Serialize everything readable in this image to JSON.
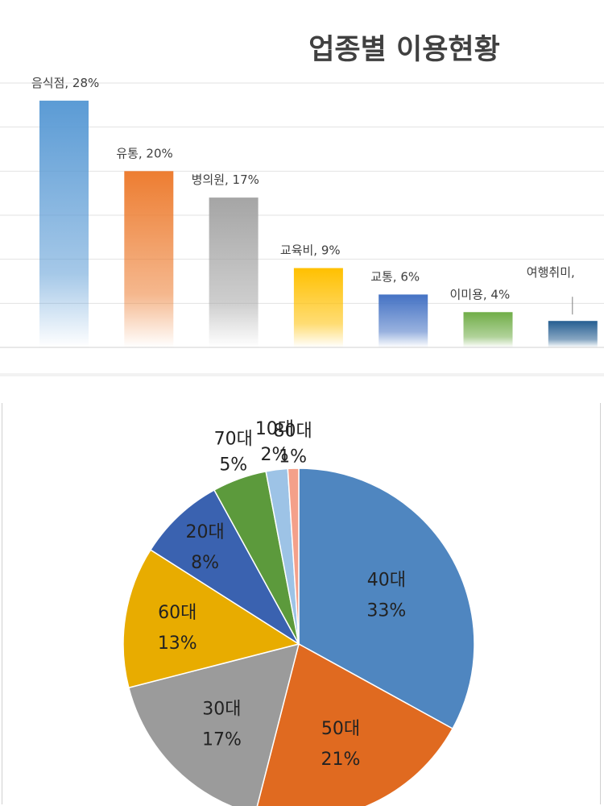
{
  "chart_data": [
    {
      "type": "bar",
      "title": "업종별 이용현황",
      "categories": [
        "음식점",
        "유통",
        "병의원",
        "교육비",
        "교통",
        "이미용",
        "여행취미"
      ],
      "values": [
        28,
        20,
        17,
        9,
        6,
        4,
        3
      ],
      "data_labels": [
        "음식점, 28%",
        "유통, 20%",
        "병의원, 17%",
        "교육비, 9%",
        "교통, 6%",
        "이미용, 4%",
        "여행취미,"
      ],
      "unit": "%",
      "ylim": [
        0,
        30
      ],
      "grid": true,
      "legend": "none",
      "colors": [
        "#5B9BD5",
        "#ED7D31",
        "#A5A5A5",
        "#FFC000",
        "#4472C4",
        "#70AD47",
        "#255E91"
      ]
    },
    {
      "type": "pie",
      "title": "",
      "categories": [
        "40대",
        "50대",
        "30대",
        "60대",
        "20대",
        "70대",
        "10대",
        "80대"
      ],
      "values": [
        33,
        21,
        17,
        13,
        8,
        5,
        2,
        1
      ],
      "labels": [
        "33%",
        "21%",
        "17%",
        "13%",
        "8%",
        "5%",
        "2%",
        "1%"
      ],
      "start": "top, clockwise",
      "legend": "none",
      "colors": [
        "#4F86C0",
        "#E06A20",
        "#9B9B9B",
        "#E8AC00",
        "#3A62B0",
        "#5C9A3C",
        "#9DC3E6",
        "#F4A08A"
      ]
    }
  ]
}
